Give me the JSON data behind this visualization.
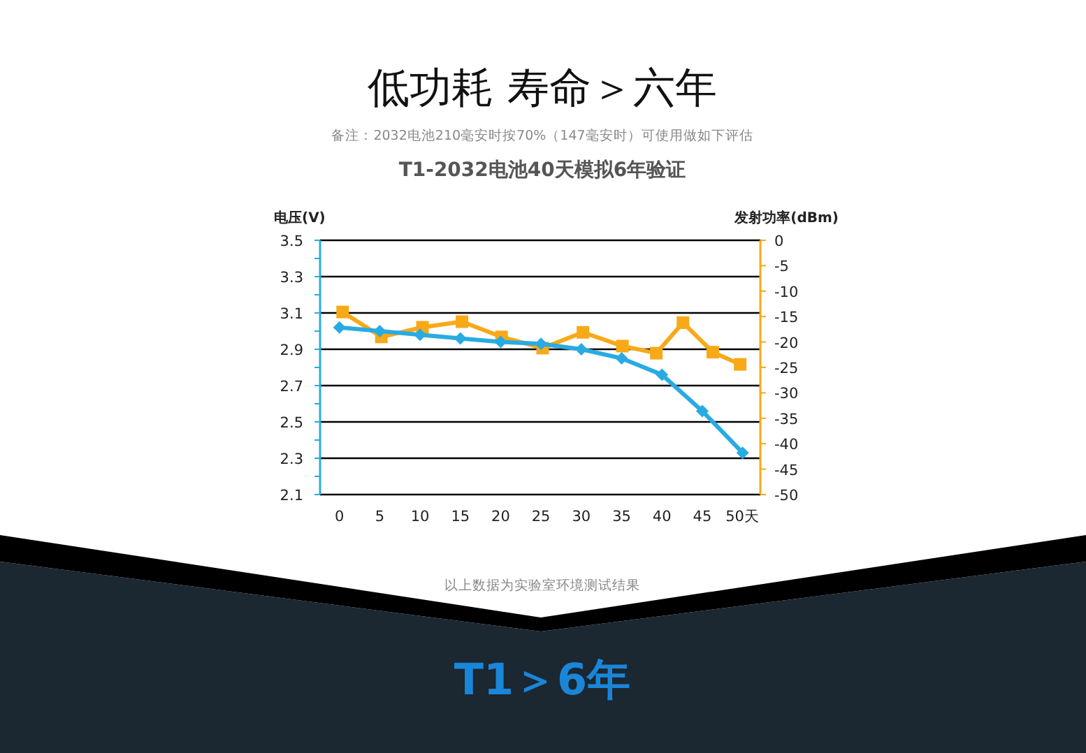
{
  "chart_data": {
    "type": "line",
    "title": "低功耗 寿命＞六年",
    "subtitle": "备注：2032电池210毫安时按70%（147毫安时）可使用做如下评估",
    "annotations": [
      "T1-2032电池40天模拟6年验证",
      "以上数据为实验室环境测试结果",
      "T1＞6年"
    ],
    "ylabel": "电压(V)",
    "y2label": "发射功率(dBm)",
    "xlim": [
      -2.4,
      52.2
    ],
    "xticks": [
      0,
      5,
      10,
      15,
      20,
      25,
      30,
      35,
      40,
      45,
      {
        "value": 50,
        "label": "50天"
      }
    ],
    "ylim": [
      2.1,
      3.5
    ],
    "yticks": [
      2.1,
      {
        "value": 2.2,
        "label": null
      },
      2.3,
      {
        "value": 2.4,
        "label": null
      },
      2.5,
      {
        "value": 2.6,
        "label": null
      },
      2.7,
      {
        "value": 2.8,
        "label": null
      },
      2.9,
      {
        "value": 3.0,
        "label": null
      },
      3.1,
      {
        "value": 3.2,
        "label": null
      },
      3.3,
      {
        "value": 3.4,
        "label": null
      },
      3.5
    ],
    "y2lim": [
      -50,
      0
    ],
    "y2ticks": [
      -50,
      -45,
      -40,
      -35,
      -30,
      -25,
      -20,
      -15,
      -10,
      -5,
      0
    ],
    "grid": "y",
    "series": [
      {
        "color": "#29abe2",
        "marker": "diamond",
        "x": [
          0,
          5,
          10,
          15,
          20,
          25,
          30,
          35,
          40,
          45,
          50
        ],
        "values": [
          3.02,
          3.0,
          2.98,
          2.96,
          2.94,
          2.93,
          2.9,
          2.85,
          2.76,
          2.56,
          2.33
        ]
      },
      {
        "color": "#f7a917",
        "marker": "square",
        "axis": "y2",
        "x": [
          0.4,
          5.2,
          10.3,
          15.2,
          20.1,
          25.2,
          30.2,
          35.1,
          39.3,
          42.6,
          46.3,
          49.7
        ],
        "values": [
          -14.1,
          -19.0,
          -17.1,
          -16.0,
          -19.0,
          -21.2,
          -18.1,
          -20.8,
          -22.2,
          -16.2,
          -22.0,
          -24.4
        ]
      }
    ]
  }
}
